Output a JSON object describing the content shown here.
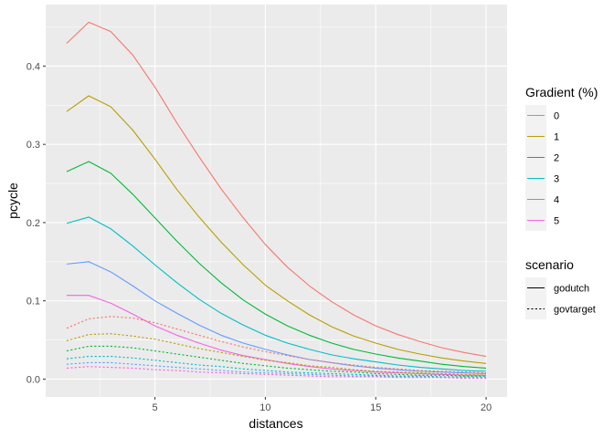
{
  "chart_data": {
    "type": "line",
    "xlabel": "distances",
    "ylabel": "pcycle",
    "xlim": [
      0.05,
      20.95
    ],
    "ylim": [
      -0.0228,
      0.4786
    ],
    "x_ticks": [
      5,
      10,
      15,
      20
    ],
    "y_ticks": [
      0.0,
      0.1,
      0.2,
      0.3,
      0.4
    ],
    "x_tick_labels": [
      "5",
      "10",
      "15",
      "20"
    ],
    "y_tick_labels": [
      "0.0",
      "0.1",
      "0.2",
      "0.3",
      "0.4"
    ],
    "grid": true,
    "legend_placement": "right",
    "colors": {
      "panel_background": "#EBEBEB",
      "grid": "#FFFFFF",
      "gradient_0": "#F8766D",
      "gradient_1": "#B79F00",
      "gradient_2": "#00BA38",
      "gradient_3": "#00BFC4",
      "gradient_4": "#619CFF",
      "gradient_5": "#F564E3"
    },
    "x": [
      1,
      2,
      3,
      4,
      5,
      6,
      7,
      8,
      9,
      10,
      11,
      12,
      13,
      14,
      15,
      16,
      17,
      18,
      19,
      20
    ],
    "legends": [
      {
        "title": "Gradient (%)",
        "key": "color",
        "entries": [
          {
            "label": "0",
            "color": "#F8766D"
          },
          {
            "label": "1",
            "color": "#B79F00"
          },
          {
            "label": "2",
            "color": "#00BA38"
          },
          {
            "label": "3",
            "color": "#00BFC4"
          },
          {
            "label": "4",
            "color": "#619CFF"
          },
          {
            "label": "5",
            "color": "#F564E3"
          }
        ]
      },
      {
        "title": "scenario",
        "key": "linetype",
        "entries": [
          {
            "label": "godutch",
            "linetype": "solid"
          },
          {
            "label": "govtarget",
            "linetype": "dotted"
          }
        ]
      }
    ],
    "series": [
      {
        "gradient": "0",
        "scenario": "godutch",
        "color": "#F8766D",
        "values": [
          0.429,
          0.456,
          0.444,
          0.414,
          0.373,
          0.327,
          0.284,
          0.243,
          0.206,
          0.172,
          0.143,
          0.119,
          0.099,
          0.082,
          0.068,
          0.057,
          0.048,
          0.04,
          0.034,
          0.029
        ]
      },
      {
        "gradient": "1",
        "scenario": "godutch",
        "color": "#B79F00",
        "values": [
          0.342,
          0.362,
          0.348,
          0.318,
          0.281,
          0.242,
          0.207,
          0.175,
          0.146,
          0.12,
          0.1,
          0.082,
          0.067,
          0.055,
          0.046,
          0.038,
          0.032,
          0.027,
          0.023,
          0.02
        ]
      },
      {
        "gradient": "2",
        "scenario": "godutch",
        "color": "#00BA38",
        "values": [
          0.265,
          0.278,
          0.263,
          0.236,
          0.206,
          0.176,
          0.148,
          0.123,
          0.101,
          0.083,
          0.068,
          0.056,
          0.046,
          0.038,
          0.032,
          0.027,
          0.023,
          0.019,
          0.016,
          0.014
        ]
      },
      {
        "gradient": "3",
        "scenario": "godutch",
        "color": "#00BFC4",
        "values": [
          0.199,
          0.207,
          0.192,
          0.17,
          0.146,
          0.123,
          0.102,
          0.084,
          0.069,
          0.056,
          0.046,
          0.038,
          0.031,
          0.026,
          0.022,
          0.018,
          0.015,
          0.013,
          0.011,
          0.01
        ]
      },
      {
        "gradient": "4",
        "scenario": "godutch",
        "color": "#619CFF",
        "values": [
          0.147,
          0.15,
          0.137,
          0.119,
          0.1,
          0.084,
          0.069,
          0.056,
          0.046,
          0.038,
          0.031,
          0.025,
          0.021,
          0.017,
          0.014,
          0.012,
          0.01,
          0.009,
          0.008,
          0.007
        ]
      },
      {
        "gradient": "5",
        "scenario": "godutch",
        "color": "#F564E3",
        "values": [
          0.107,
          0.107,
          0.097,
          0.083,
          0.068,
          0.056,
          0.046,
          0.037,
          0.03,
          0.025,
          0.02,
          0.016,
          0.013,
          0.011,
          0.009,
          0.008,
          0.007,
          0.006,
          0.005,
          0.005
        ]
      },
      {
        "gradient": "0",
        "scenario": "govtarget",
        "color": "#F8766D",
        "values": [
          0.065,
          0.077,
          0.08,
          0.078,
          0.072,
          0.064,
          0.056,
          0.048,
          0.041,
          0.035,
          0.03,
          0.025,
          0.021,
          0.018,
          0.015,
          0.013,
          0.011,
          0.01,
          0.009,
          0.008
        ]
      },
      {
        "gradient": "1",
        "scenario": "govtarget",
        "color": "#B79F00",
        "values": [
          0.049,
          0.057,
          0.058,
          0.055,
          0.051,
          0.045,
          0.039,
          0.034,
          0.029,
          0.024,
          0.021,
          0.017,
          0.015,
          0.012,
          0.01,
          0.009,
          0.008,
          0.007,
          0.006,
          0.005
        ]
      },
      {
        "gradient": "2",
        "scenario": "govtarget",
        "color": "#00BA38",
        "values": [
          0.036,
          0.042,
          0.042,
          0.04,
          0.036,
          0.032,
          0.028,
          0.024,
          0.02,
          0.017,
          0.014,
          0.012,
          0.01,
          0.009,
          0.007,
          0.006,
          0.005,
          0.005,
          0.004,
          0.004
        ]
      },
      {
        "gradient": "3",
        "scenario": "govtarget",
        "color": "#00BFC4",
        "values": [
          0.026,
          0.029,
          0.029,
          0.027,
          0.024,
          0.021,
          0.018,
          0.016,
          0.013,
          0.011,
          0.009,
          0.008,
          0.007,
          0.006,
          0.005,
          0.004,
          0.004,
          0.003,
          0.003,
          0.003
        ]
      },
      {
        "gradient": "4",
        "scenario": "govtarget",
        "color": "#619CFF",
        "values": [
          0.019,
          0.021,
          0.021,
          0.019,
          0.017,
          0.015,
          0.013,
          0.011,
          0.009,
          0.008,
          0.007,
          0.006,
          0.005,
          0.004,
          0.004,
          0.003,
          0.003,
          0.002,
          0.002,
          0.002
        ]
      },
      {
        "gradient": "5",
        "scenario": "govtarget",
        "color": "#F564E3",
        "values": [
          0.014,
          0.016,
          0.015,
          0.014,
          0.012,
          0.011,
          0.009,
          0.008,
          0.007,
          0.006,
          0.005,
          0.004,
          0.003,
          0.003,
          0.003,
          0.002,
          0.002,
          0.002,
          0.001,
          0.001
        ]
      }
    ]
  }
}
